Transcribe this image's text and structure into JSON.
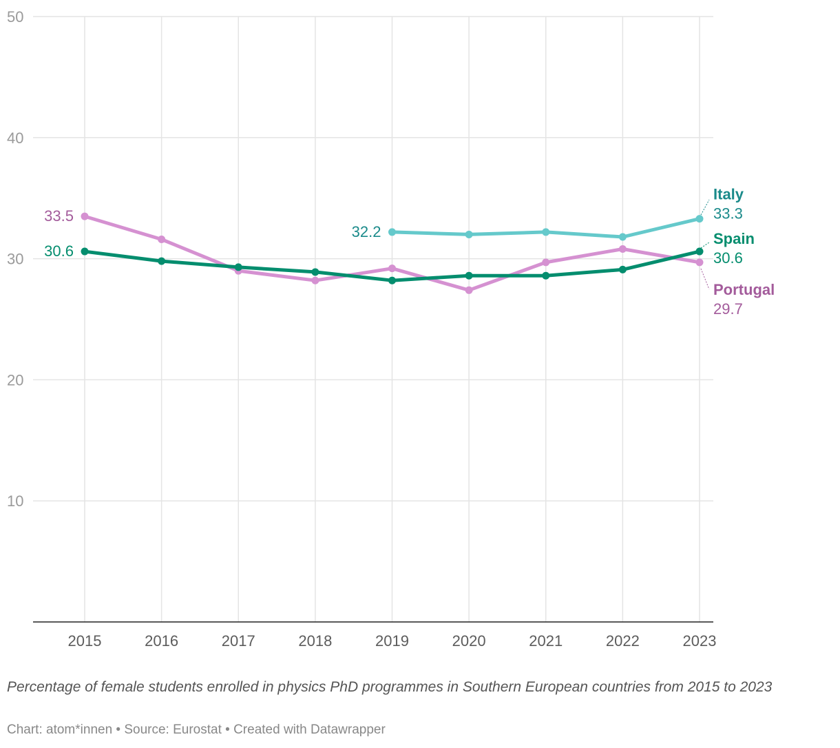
{
  "chart_data": {
    "type": "line",
    "title": "",
    "caption": "Percentage of female students enrolled in physics PhD programmes in Southern European countries from 2015 to 2023",
    "credit": "Chart: atom*innen • Source: Eurostat • Created with Datawrapper",
    "xlabel": "",
    "ylabel": "",
    "ylim": [
      0,
      50
    ],
    "yticks": [
      10,
      20,
      30,
      40,
      50
    ],
    "grid": true,
    "x": [
      "2015",
      "2016",
      "2017",
      "2018",
      "2019",
      "2020",
      "2021",
      "2022",
      "2023"
    ],
    "series": [
      {
        "name": "Portugal",
        "color": "#d591d1",
        "label_color": "#a35b9b",
        "values": [
          33.5,
          31.6,
          29.0,
          28.2,
          29.2,
          27.4,
          29.7,
          30.8,
          29.7
        ],
        "start_label": "33.5",
        "end_label": "29.7"
      },
      {
        "name": "Italy",
        "color": "#65c9cb",
        "label_color": "#1a8a8a",
        "values": [
          null,
          null,
          null,
          null,
          32.2,
          32.0,
          32.2,
          31.8,
          33.3
        ],
        "start_label": "32.2",
        "end_label": "33.3"
      },
      {
        "name": "Spain",
        "color": "#048d6e",
        "label_color": "#048d6e",
        "values": [
          30.6,
          29.8,
          29.3,
          28.9,
          28.2,
          28.6,
          28.6,
          29.1,
          30.6
        ],
        "start_label": "30.6",
        "end_label": "30.6"
      }
    ]
  }
}
